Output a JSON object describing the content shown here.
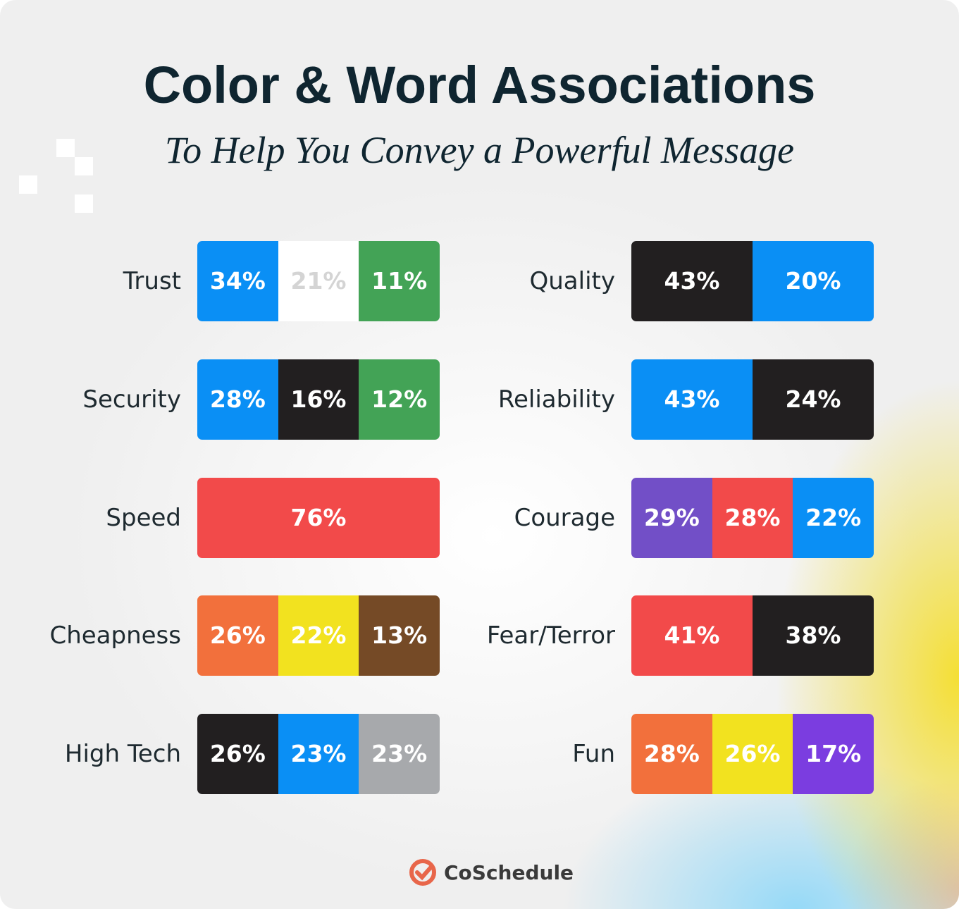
{
  "header": {
    "title": "Color & Word Associations",
    "subtitle": "To Help You Convey a Powerful Message"
  },
  "columns": [
    [
      {
        "label": "Trust",
        "segments": [
          {
            "value": "34%",
            "color": "#0a8ff5"
          },
          {
            "value": "21%",
            "color": "#ffffff"
          },
          {
            "value": "11%",
            "color": "#43a356"
          }
        ]
      },
      {
        "label": "Security",
        "segments": [
          {
            "value": "28%",
            "color": "#0a8ff5"
          },
          {
            "value": "16%",
            "color": "#221f20"
          },
          {
            "value": "12%",
            "color": "#43a356"
          }
        ]
      },
      {
        "label": "Speed",
        "segments": [
          {
            "value": "76%",
            "color": "#f24a4a"
          }
        ]
      },
      {
        "label": "Cheapness",
        "segments": [
          {
            "value": "26%",
            "color": "#f2703c"
          },
          {
            "value": "22%",
            "color": "#f2e21f"
          },
          {
            "value": "13%",
            "color": "#754a26"
          }
        ]
      },
      {
        "label": "High Tech",
        "segments": [
          {
            "value": "26%",
            "color": "#221f20"
          },
          {
            "value": "23%",
            "color": "#0a8ff5"
          },
          {
            "value": "23%",
            "color": "#a7a9ac"
          }
        ]
      }
    ],
    [
      {
        "label": "Quality",
        "segments": [
          {
            "value": "43%",
            "color": "#221f20"
          },
          {
            "value": "20%",
            "color": "#0a8ff5"
          }
        ]
      },
      {
        "label": "Reliability",
        "segments": [
          {
            "value": "43%",
            "color": "#0a8ff5"
          },
          {
            "value": "24%",
            "color": "#221f20"
          }
        ]
      },
      {
        "label": "Courage",
        "segments": [
          {
            "value": "29%",
            "color": "#724fc7"
          },
          {
            "value": "28%",
            "color": "#f24a4a"
          },
          {
            "value": "22%",
            "color": "#0a8ff5"
          }
        ]
      },
      {
        "label": "Fear/Terror",
        "segments": [
          {
            "value": "41%",
            "color": "#f24a4a"
          },
          {
            "value": "38%",
            "color": "#221f20"
          }
        ]
      },
      {
        "label": "Fun",
        "segments": [
          {
            "value": "28%",
            "color": "#f2703c"
          },
          {
            "value": "26%",
            "color": "#f2e21f"
          },
          {
            "value": "17%",
            "color": "#7b3de0"
          }
        ]
      }
    ]
  ],
  "footer": {
    "brand": "CoSchedule"
  }
}
